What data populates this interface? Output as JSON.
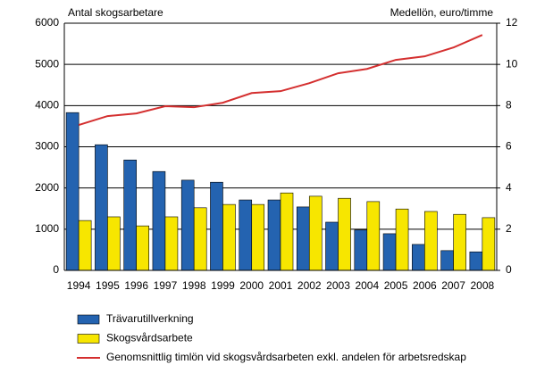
{
  "chart_data": {
    "type": "bar",
    "y_label": "Antal skogsarbetare",
    "y2_label": "Medellön, euro/timme",
    "categories": [
      "1994",
      "1995",
      "1996",
      "1997",
      "1998",
      "1999",
      "2000",
      "2001",
      "2002",
      "2003",
      "2004",
      "2005",
      "2006",
      "2007",
      "2008"
    ],
    "series": [
      {
        "name": "Trävarutillverkning",
        "type": "bar",
        "color": "#2463b0",
        "values": [
          3830,
          3050,
          2680,
          2400,
          2190,
          2140,
          1710,
          1710,
          1540,
          1170,
          980,
          890,
          630,
          480,
          450
        ]
      },
      {
        "name": "Skogsvårdsarbete",
        "type": "bar",
        "color": "#f7e600",
        "values": [
          1210,
          1300,
          1080,
          1300,
          1520,
          1600,
          1600,
          1880,
          1800,
          1750,
          1670,
          1490,
          1430,
          1360,
          1280
        ]
      },
      {
        "name": "Genomsnittlig timlön vid skogsvårdsarbeten exkl. andelen för arbetsredskap",
        "type": "line",
        "axis": "y2",
        "color": "#d42f2f",
        "values": [
          7.06,
          7.49,
          7.62,
          7.97,
          7.92,
          8.14,
          8.61,
          8.7,
          9.09,
          9.57,
          9.78,
          10.22,
          10.39,
          10.82,
          11.43
        ]
      }
    ],
    "ylim": [
      0,
      6000
    ],
    "yticks": [
      0,
      1000,
      2000,
      3000,
      4000,
      5000,
      6000
    ],
    "y2lim": [
      0,
      12
    ],
    "y2ticks": [
      0,
      2,
      4,
      6,
      8,
      10,
      12
    ],
    "grid": true
  }
}
